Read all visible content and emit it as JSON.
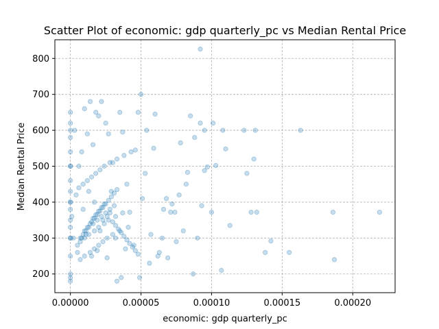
{
  "chart_data": {
    "type": "scatter",
    "title": "Scatter Plot of economic: gdp quarterly_pc vs Median Rental Price",
    "xlabel": "economic: gdp quarterly_pc",
    "ylabel": "Median Rental Price",
    "xlim": [
      -1.1e-05,
      0.00023
    ],
    "ylim": [
      148,
      852
    ],
    "x_ticks": [
      0,
      5e-05,
      0.0001,
      0.00015,
      0.0002
    ],
    "x_tick_labels": [
      "0.00000",
      "0.00005",
      "0.00010",
      "0.00015",
      "0.00020"
    ],
    "y_ticks": [
      200,
      300,
      400,
      500,
      600,
      700,
      800
    ],
    "y_tick_labels": [
      "200",
      "300",
      "400",
      "500",
      "600",
      "700",
      "800"
    ],
    "grid": true,
    "point_color": "#1f77b4",
    "point_alpha": 0.25,
    "series": [
      {
        "x": [
          9.2e-05,
          5e-05,
          0.000219,
          0.000186,
          0.000187,
          0.000163,
          0.000155,
          0.000142,
          0.000138,
          0.000132,
          0.000131,
          0.000128,
          0.00013,
          0.000123,
          0.000125,
          0.00011,
          0.000113,
          0.000107,
          0.000108,
          0.000103,
          0.000101,
          0.0001,
          9.7e-05,
          9.5e-05,
          9.3e-05,
          9.5e-05,
          9.2e-05,
          9e-05,
          8.8e-05,
          8.7e-05,
          8.5e-05,
          8.3e-05,
          8.2e-05,
          8e-05,
          7.8e-05,
          7.7e-05,
          7.5e-05,
          7.4e-05,
          7.2e-05,
          7.1e-05,
          6.9e-05,
          6.8e-05,
          6.6e-05,
          6.5e-05,
          6.3e-05,
          6.2e-05,
          6e-05,
          5.9e-05,
          5.7e-05,
          5.6e-05,
          5.4e-05,
          5.3e-05,
          5.1e-05,
          4.9e-05,
          4.8e-05,
          4.6e-05,
          4.5e-05,
          4.3e-05,
          4.2e-05,
          4e-05,
          3.9e-05,
          3.7e-05,
          3.6e-05,
          3.5e-05,
          3.3e-05,
          3.2e-05,
          3e-05,
          2.9e-05,
          2.7e-05,
          2.6e-05,
          2.5e-05,
          2.3e-05,
          2.2e-05,
          2.1e-05,
          2e-05,
          1.9e-05,
          1.8e-05,
          1.7e-05,
          1.6e-05,
          1.5e-05,
          1.4e-05,
          1.3e-05,
          1.2e-05,
          1.1e-05,
          1e-05,
          9e-06,
          8e-06,
          7e-06,
          6e-06,
          5e-06,
          4e-06,
          3e-06,
          2e-06,
          1e-06,
          0.0,
          0.0,
          0.0,
          0.0,
          0.0,
          0.0,
          0.0,
          0.0,
          0.0,
          0.0,
          0.0,
          0.0,
          0.0,
          0.0,
          0.0,
          0.0,
          0.0,
          0.0,
          0.0,
          0.0,
          1e-05,
          1.2e-05,
          1.4e-05,
          1.6e-05,
          1.8e-05,
          2e-05,
          2.2e-05,
          2.4e-05,
          2.6e-05,
          2.8e-05,
          3e-05,
          3.2e-05,
          3.4e-05,
          3.6e-05,
          3.8e-05,
          4e-05,
          4.2e-05,
          4.4e-05,
          4.6e-05,
          4.8e-05,
          1.5e-05,
          1.7e-05,
          1.9e-05,
          2.1e-05,
          2.3e-05,
          2.5e-05,
          2.7e-05,
          2.9e-05,
          3.1e-05,
          3.3e-05,
          8e-06,
          9e-06,
          1.1e-05,
          1.3e-05,
          1.6e-05,
          1.9e-05,
          2.2e-05,
          2.5e-05,
          2.8e-05,
          3.1e-05,
          5e-06,
          7e-06,
          1e-05,
          1.3e-05,
          1.7e-05,
          2e-05,
          2.4e-05,
          2.7e-05,
          3.2e-05,
          3.7e-05,
          6e-06,
          9e-06,
          1.2e-05,
          1.5e-05,
          1.8e-05,
          2.1e-05,
          2.4e-05,
          2.8e-05,
          3.3e-05,
          3.8e-05,
          7e-06,
          1e-05,
          1.4e-05,
          1.7e-05,
          2e-05,
          2.3e-05,
          2.6e-05,
          3e-05,
          3.5e-05,
          4.1e-05
        ],
        "y": [
          826,
          700,
          372,
          372,
          240,
          600,
          260,
          292,
          260,
          372,
          600,
          372,
          520,
          600,
          480,
          548,
          335,
          210,
          600,
          502,
          620,
          372,
          498,
          488,
          390,
          600,
          620,
          300,
          580,
          200,
          640,
          483,
          450,
          320,
          565,
          420,
          290,
          372,
          395,
          372,
          245,
          410,
          380,
          300,
          260,
          250,
          645,
          550,
          310,
          230,
          600,
          480,
          410,
          190,
          650,
          545,
          280,
          540,
          372,
          450,
          270,
          595,
          190,
          650,
          180,
          300,
          510,
          430,
          590,
          245,
          620,
          350,
          680,
          320,
          640,
          265,
          650,
          400,
          560,
          250,
          680,
          430,
          590,
          310,
          660,
          380,
          540,
          300,
          500,
          260,
          420,
          600,
          300,
          360,
          180,
          190,
          200,
          250,
          300,
          330,
          350,
          380,
          400,
          430,
          460,
          500,
          540,
          580,
          600,
          620,
          650,
          300,
          400,
          500,
          320,
          330,
          340,
          355,
          365,
          375,
          385,
          395,
          360,
          370,
          345,
          335,
          325,
          315,
          305,
          295,
          285,
          275,
          265,
          255,
          345,
          355,
          365,
          375,
          385,
          395,
          405,
          415,
          425,
          435,
          300,
          310,
          320,
          330,
          340,
          350,
          360,
          370,
          380,
          390,
          280,
          290,
          300,
          310,
          320,
          330,
          340,
          350,
          360,
          370,
          440,
          450,
          460,
          470,
          480,
          490,
          500,
          510,
          520,
          530,
          240,
          250,
          260,
          270,
          280,
          290,
          300,
          310,
          320,
          330
        ]
      }
    ]
  }
}
